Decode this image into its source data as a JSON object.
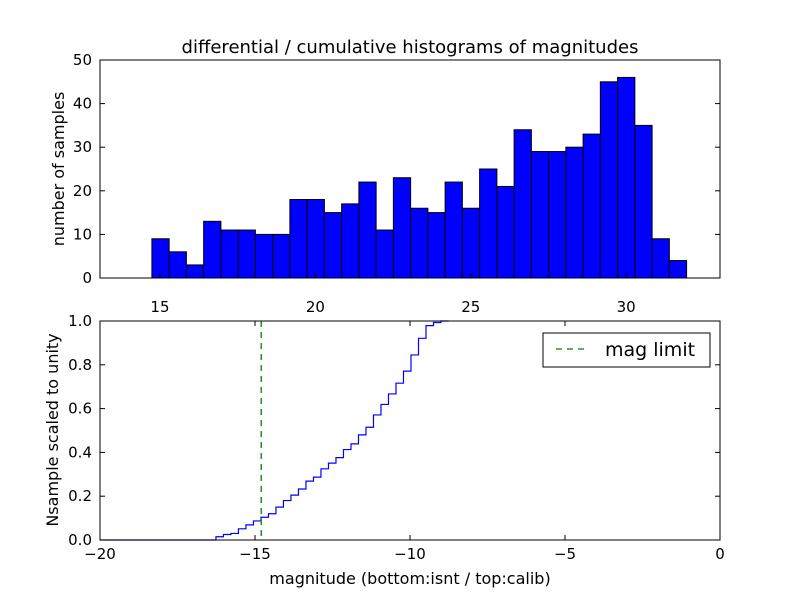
{
  "chart_data": [
    {
      "type": "bar",
      "title": "differential / cumulative histograms of magnitudes",
      "xlabel": "",
      "ylabel": "number of samples",
      "xlim": [
        13.07,
        33.02
      ],
      "ylim": [
        0,
        50
      ],
      "xticks": [
        15,
        20,
        25,
        30
      ],
      "yticks": [
        0,
        10,
        20,
        30,
        40,
        50
      ],
      "bin_start": 14.74,
      "bin_width": 0.555,
      "values": [
        9,
        6,
        3,
        13,
        11,
        11,
        10,
        10,
        18,
        18,
        15,
        17,
        22,
        11,
        23,
        16,
        15,
        22,
        16,
        25,
        21,
        34,
        29,
        29,
        30,
        33,
        45,
        46,
        35,
        9,
        4
      ],
      "bar_color": "#0000ff",
      "grid": false
    },
    {
      "type": "line",
      "xlabel": "magnitude (bottom:isnt / top:calib)",
      "ylabel": "Nsample scaled to unity",
      "xlim": [
        -20,
        0
      ],
      "ylim": [
        0,
        1.0
      ],
      "xticks": [
        -20,
        -15,
        -10,
        -5,
        0
      ],
      "yticks": [
        "0.0",
        "0.2",
        "0.4",
        "0.6",
        "0.8",
        "1.0"
      ],
      "step_start": -16.26,
      "step_width": 0.242,
      "cumulative": [
        0.015,
        0.025,
        0.03,
        0.051,
        0.069,
        0.087,
        0.104,
        0.12,
        0.15,
        0.18,
        0.205,
        0.233,
        0.269,
        0.287,
        0.325,
        0.351,
        0.376,
        0.413,
        0.439,
        0.48,
        0.515,
        0.571,
        0.619,
        0.667,
        0.716,
        0.771,
        0.845,
        0.921,
        0.979,
        0.993,
        1.0
      ],
      "line_color": "#0000ff",
      "mag_limit": -14.8,
      "mag_limit_color": "#007f00",
      "legend": {
        "label": "mag limit",
        "placement": "top-right"
      },
      "grid": false
    }
  ]
}
